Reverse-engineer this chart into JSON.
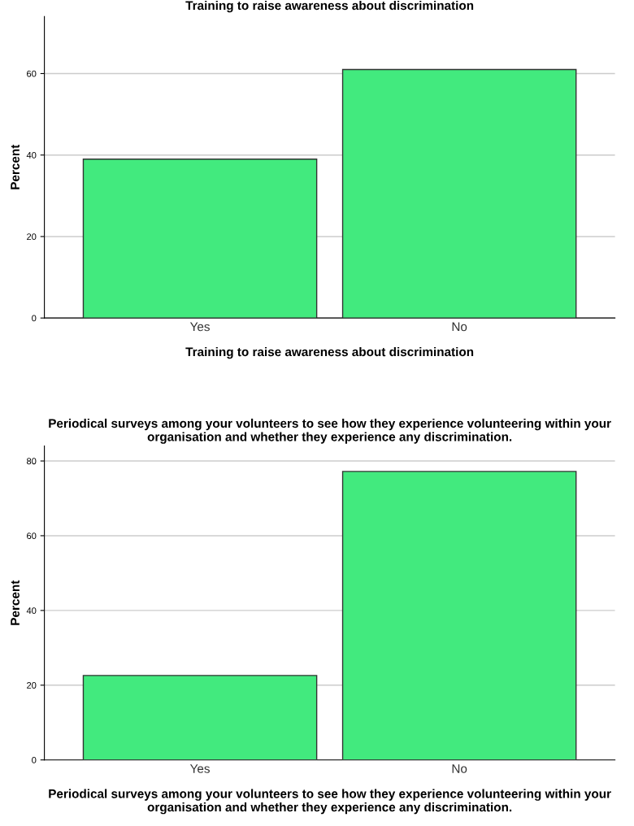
{
  "chart_data": [
    {
      "type": "bar",
      "title": "Training to raise awareness about discrimination",
      "xlabel": "Training to raise awareness about discrimination",
      "ylabel": "Percent",
      "categories": [
        "Yes",
        "No"
      ],
      "values": [
        39,
        61
      ],
      "color": "#42ea7e",
      "ylim": [
        0,
        74
      ],
      "yticks": [
        0,
        20,
        40,
        60
      ],
      "grid": "y"
    },
    {
      "type": "bar",
      "title": "Periodical surveys among your volunteers to see how they experience volunteering within your organisation and whether they experience any discrimination.",
      "xlabel": "Periodical surveys among your volunteers to see how they experience volunteering within your organisation and whether they experience any discrimination.",
      "ylabel": "Percent",
      "categories": [
        "Yes",
        "No"
      ],
      "values": [
        22.6,
        77.2
      ],
      "color": "#42ea7e",
      "ylim": [
        0,
        84
      ],
      "yticks": [
        0,
        20,
        40,
        60,
        80
      ],
      "grid": "y"
    }
  ]
}
